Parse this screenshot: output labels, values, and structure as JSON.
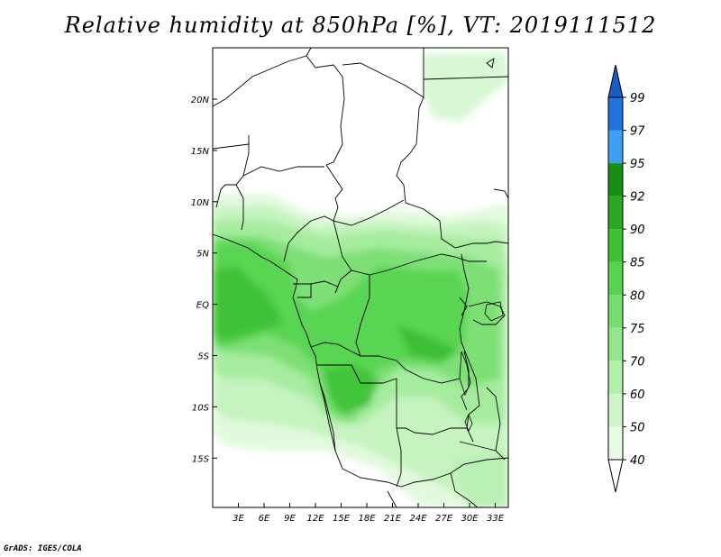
{
  "title": "Relative humidity at 850hPa [%], VT: 2019111512",
  "credit": "GrADS: IGES/COLA",
  "map": {
    "lat_labels": [
      "20N",
      "15N",
      "10N",
      "5N",
      "EQ",
      "5S",
      "10S",
      "15S"
    ],
    "lon_labels": [
      "3E",
      "6E",
      "9E",
      "12E",
      "15E",
      "18E",
      "21E",
      "24E",
      "27E",
      "30E",
      "33E"
    ]
  },
  "colorbar": {
    "labels": [
      "40",
      "50",
      "60",
      "70",
      "75",
      "80",
      "85",
      "90",
      "92",
      "95",
      "97",
      "99"
    ],
    "colors": [
      "#ffffff",
      "#e8fbe5",
      "#cdf5c8",
      "#b1efab",
      "#94e68e",
      "#76dd6f",
      "#58d451",
      "#3ec036",
      "#28a824",
      "#178f17",
      "#3ea0f0",
      "#2274dc",
      "#1b5cc0"
    ]
  }
}
